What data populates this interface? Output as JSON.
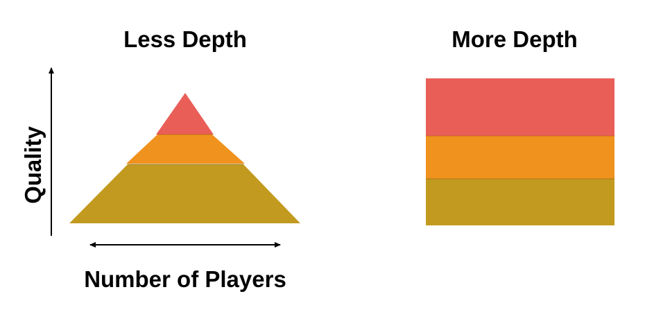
{
  "left_panel": {
    "title": "Less Depth",
    "x_axis_label": "Number of Players",
    "y_axis_label": "Quality"
  },
  "right_panel": {
    "title": "More Depth"
  },
  "colors": {
    "top": "#ea5e58",
    "middle": "#f0921e",
    "bottom": "#c29a1f"
  }
}
